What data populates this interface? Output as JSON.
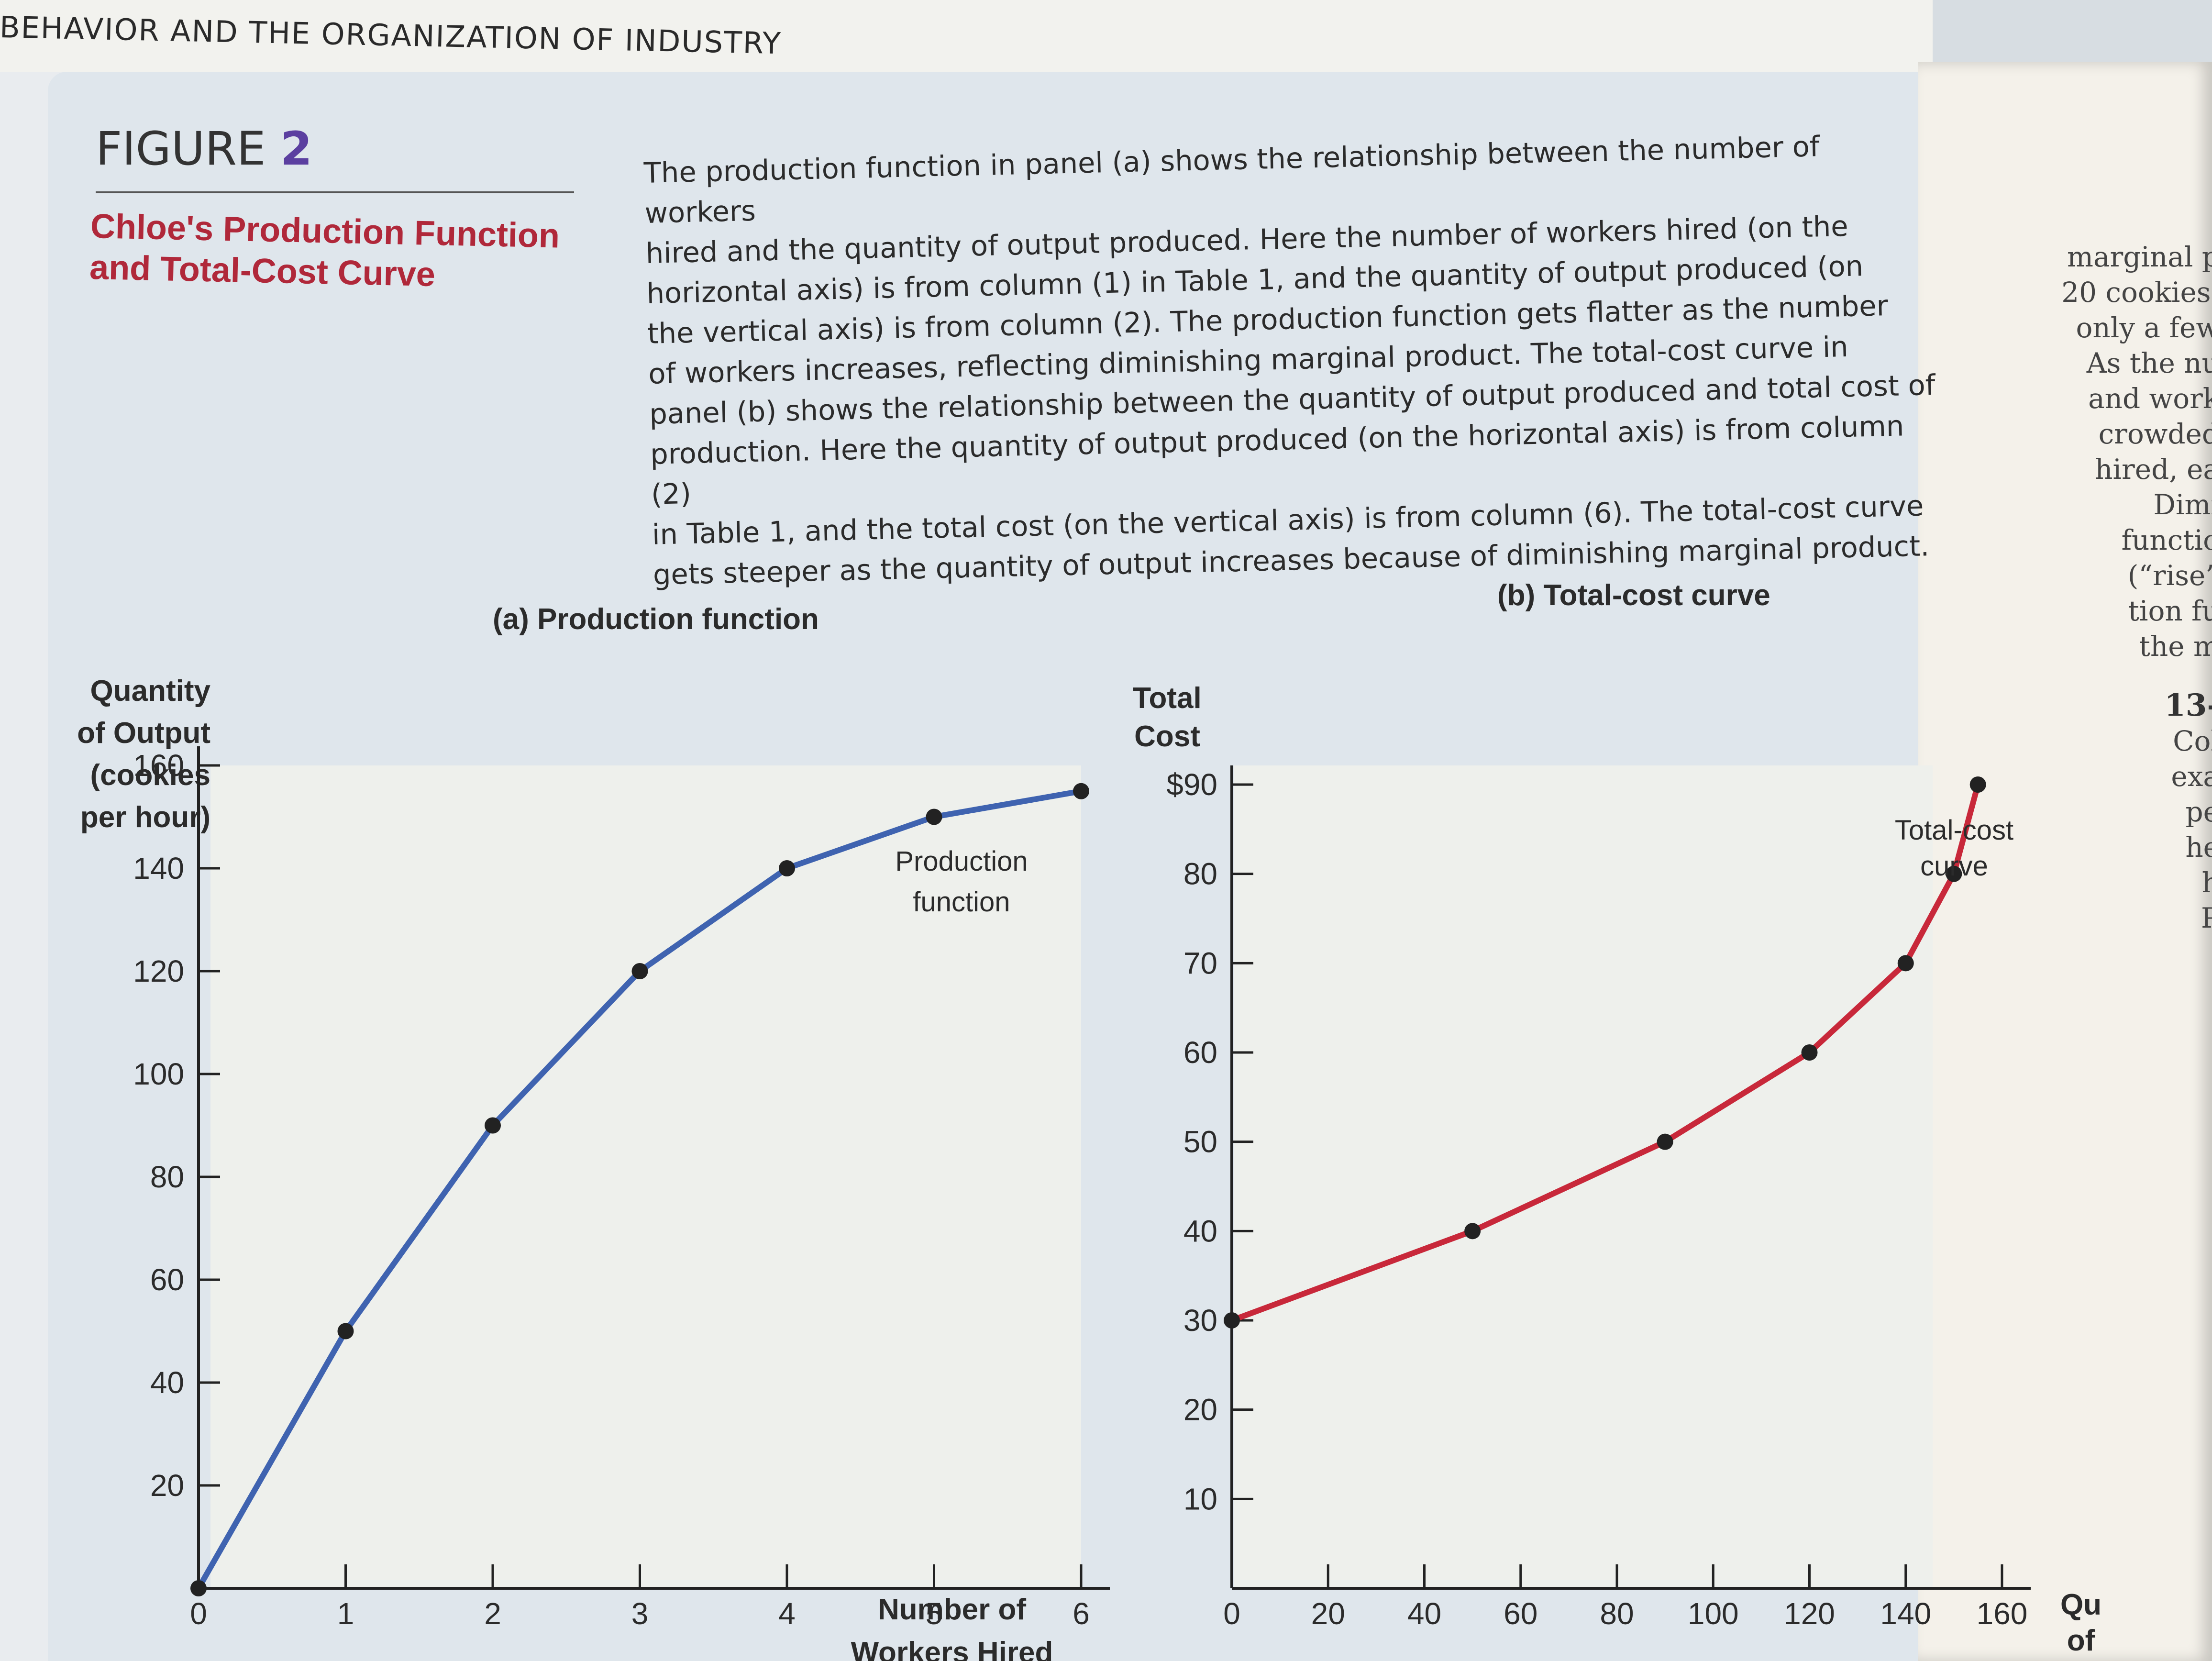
{
  "header": {
    "running_head": "BEHAVIOR AND THE ORGANIZATION OF INDUSTRY"
  },
  "figure": {
    "label": "FIGURE",
    "number": "2",
    "title_line1": "Chloe's Production Function",
    "title_line2": "and Total-Cost Curve",
    "caption_lines": [
      "The production function in panel (a) shows the relationship between the number of workers",
      "hired and the quantity of output produced. Here the number of workers hired (on the",
      "horizontal axis) is from column (1) in Table 1, and the quantity of output produced (on",
      "the vertical axis) is from column (2). The production function gets flatter as the number",
      "of workers increases, reflecting diminishing marginal product. The total-cost curve in",
      "panel (b) shows the relationship between the quantity of output produced and total cost of",
      "production. Here the quantity of output produced (on the horizontal axis) is from column (2)",
      "in Table 1, and the total cost (on the vertical axis) is from column (6). The total-cost curve",
      "gets steeper as the quantity of output increases because of diminishing marginal product."
    ]
  },
  "side_text": {
    "lines": [
      "marginal p",
      "20 cookies.",
      "only a few",
      "As the nu",
      "and work",
      "crowded",
      "hired, ea",
      "Dimi",
      "functio",
      "(“rise”",
      "tion fu",
      "the m"
    ],
    "section_lines": [
      "13-",
      "Col",
      "exa",
      "pe",
      "he",
      "h",
      "P"
    ]
  },
  "chart_data": [
    {
      "type": "line",
      "panel_title": "(a) Production function",
      "ylabel_lines": [
        "Quantity",
        "of Output",
        "(cookies",
        "per hour)"
      ],
      "xlabel_lines": [
        "Number of",
        "Workers Hired"
      ],
      "curve_label_lines": [
        "Production",
        "function"
      ],
      "x": [
        0,
        1,
        2,
        3,
        4,
        5,
        6
      ],
      "y": [
        0,
        50,
        90,
        120,
        140,
        150,
        155
      ],
      "xlim": [
        0,
        6
      ],
      "ylim": [
        0,
        160
      ],
      "xticks": [
        "0",
        "1",
        "2",
        "3",
        "4",
        "5",
        "6"
      ],
      "yticks": [
        "20",
        "40",
        "60",
        "80",
        "100",
        "120",
        "140",
        "160"
      ],
      "color": "#3f63b0",
      "grid": false
    },
    {
      "type": "line",
      "panel_title": "(b) Total-cost curve",
      "ylabel_lines": [
        "Total",
        "Cost"
      ],
      "xlabel_lines": [
        "Qu",
        "of"
      ],
      "curve_label_lines": [
        "Total-cost",
        "curve"
      ],
      "x": [
        0,
        50,
        90,
        120,
        140,
        150,
        155
      ],
      "y": [
        30,
        40,
        50,
        60,
        70,
        80,
        90
      ],
      "xlim": [
        0,
        160
      ],
      "ylim": [
        0,
        90
      ],
      "xticks": [
        "0",
        "20",
        "40",
        "60",
        "80",
        "100",
        "120",
        "140",
        "160"
      ],
      "yticks": [
        "10",
        "20",
        "30",
        "40",
        "50",
        "60",
        "70",
        "80",
        "$90"
      ],
      "color": "#c8283a",
      "grid": false
    }
  ]
}
